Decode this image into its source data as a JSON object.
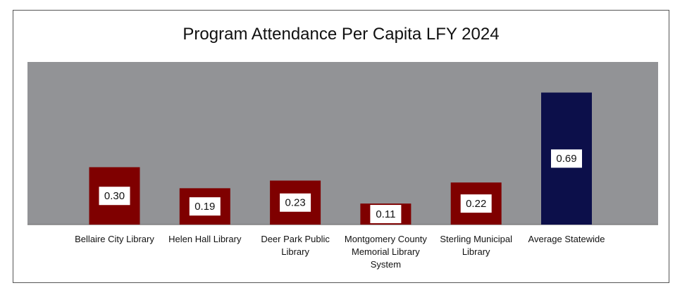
{
  "chart_data": {
    "type": "bar",
    "title": "Program Attendance Per Capita LFY 2024",
    "xlabel": "",
    "ylabel": "",
    "ylim": [
      0,
      0.85
    ],
    "grid": false,
    "legend": "none",
    "categories": [
      "Bellaire City Library",
      "Helen Hall Library",
      "Deer Park Public Library",
      "Montgomery County Memorial Library System",
      "Sterling Municipal Library",
      "Average Statewide"
    ],
    "values": [
      0.3,
      0.19,
      0.23,
      0.11,
      0.22,
      0.69
    ],
    "data_labels": [
      "0.30",
      "0.19",
      "0.23",
      "0.11",
      "0.22",
      "0.69"
    ],
    "colors": [
      "#7f0000",
      "#7f0000",
      "#7f0000",
      "#7f0000",
      "#7f0000",
      "#0c0f4a"
    ],
    "plot_background": "#929396"
  }
}
